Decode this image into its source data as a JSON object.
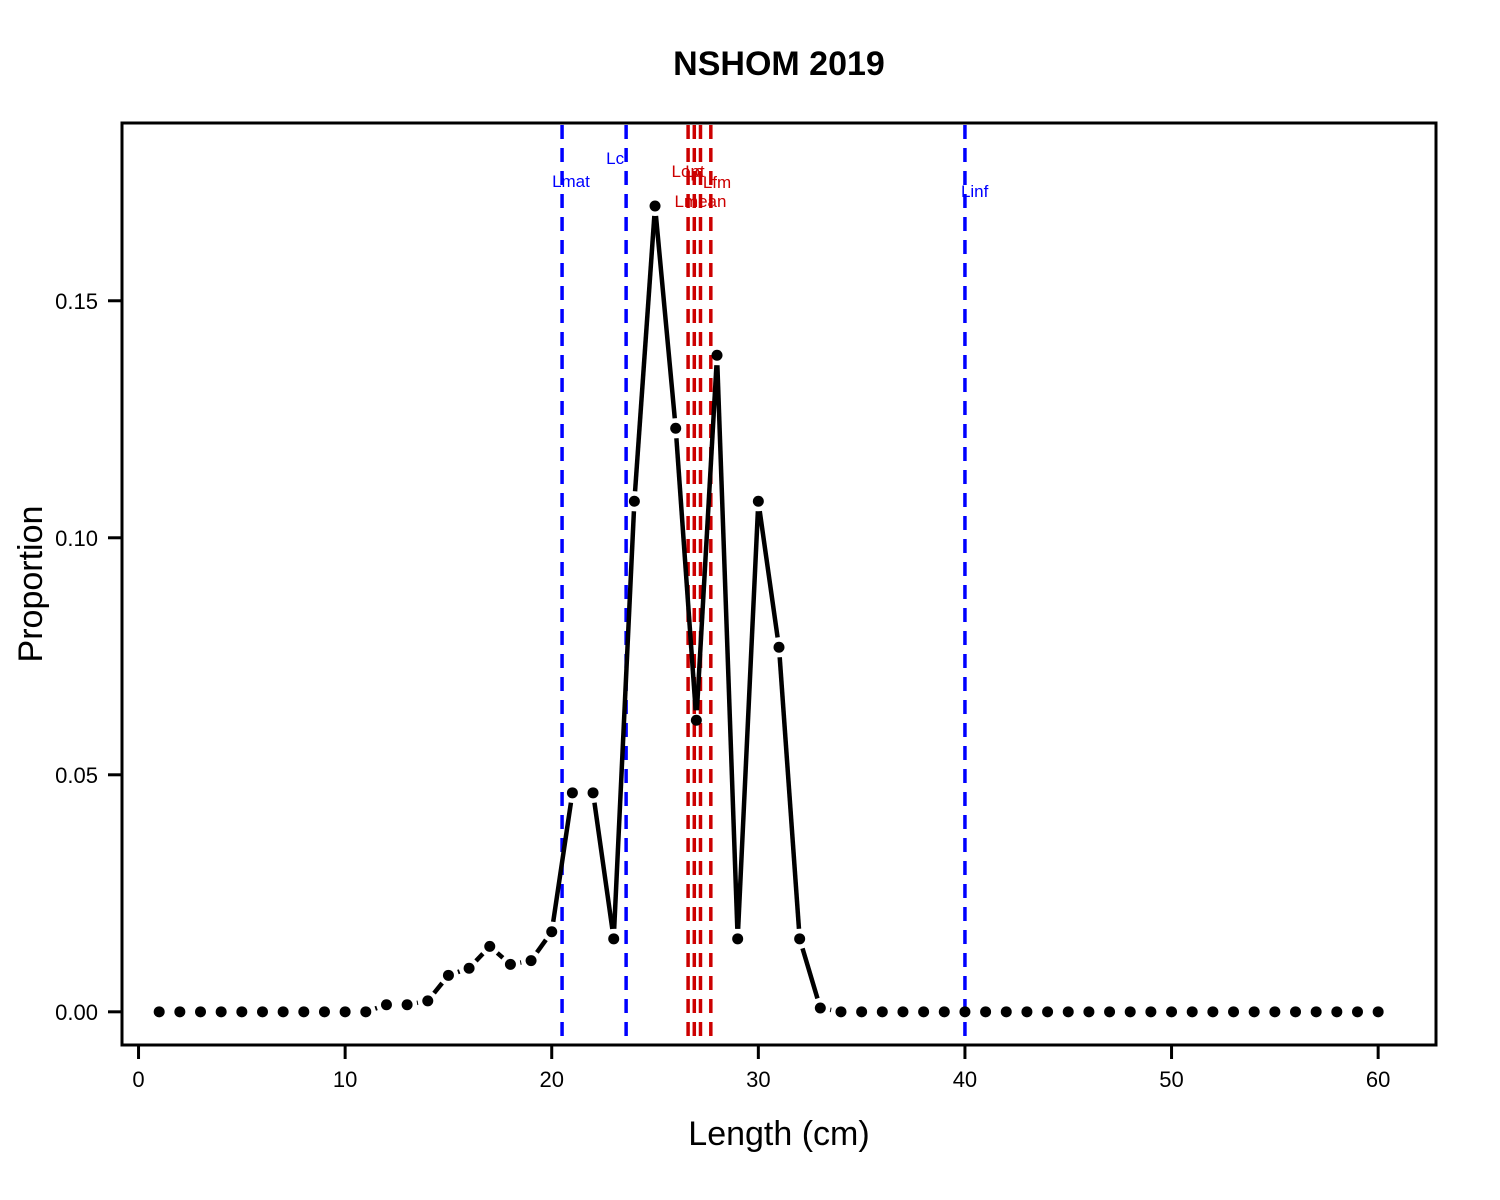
{
  "chart_data": {
    "type": "line",
    "title": "NSHOM 2019",
    "xlabel": "Length (cm)",
    "ylabel": "Proportion",
    "xlim": [
      -0.8,
      62.8
    ],
    "ylim": [
      -0.007,
      0.1875
    ],
    "x_ticks": [
      0,
      10,
      20,
      30,
      40,
      50,
      60
    ],
    "x_tick_labels": [
      "0",
      "10",
      "20",
      "30",
      "40",
      "50",
      "60"
    ],
    "y_ticks": [
      0,
      0.05,
      0.1,
      0.15
    ],
    "y_tick_labels": [
      "0.00",
      "0.05",
      "0.10",
      "0.15"
    ],
    "grid": false,
    "series": [
      {
        "x": [
          1,
          2,
          3,
          4,
          5,
          6,
          7,
          8,
          9,
          10,
          11,
          12,
          13,
          14,
          15,
          16,
          17,
          18,
          19,
          20,
          21,
          22,
          23,
          24,
          25,
          26,
          27,
          28,
          29,
          30,
          31,
          32,
          33,
          34,
          35,
          36,
          37,
          38,
          39,
          40,
          41,
          42,
          43,
          44,
          45,
          46,
          47,
          48,
          49,
          50,
          51,
          52,
          53,
          54,
          55,
          56,
          57,
          58,
          59,
          60
        ],
        "values": [
          0,
          0,
          0,
          0,
          0,
          0,
          0,
          0,
          0,
          0,
          0,
          0.0015,
          0.0015,
          0.0023,
          0.0077,
          0.0092,
          0.0138,
          0.01,
          0.0108,
          0.0169,
          0.0462,
          0.0462,
          0.0154,
          0.1077,
          0.17,
          0.1231,
          0.0615,
          0.1385,
          0.0154,
          0.1077,
          0.0769,
          0.0154,
          0.0008,
          0,
          0,
          0,
          0,
          0,
          0,
          0,
          0,
          0,
          0,
          0,
          0,
          0,
          0,
          0,
          0,
          0,
          0,
          0,
          0,
          0,
          0,
          0,
          0,
          0,
          0,
          0
        ],
        "color": "#000000"
      }
    ],
    "reference_lines": [
      {
        "label": "Lmat",
        "x": 20.5,
        "color": "#0000ff"
      },
      {
        "label": "Lc",
        "x": 23.6,
        "color": "#0000ff"
      },
      {
        "label": "Lopt",
        "x": 26.6,
        "color": "#cc0000"
      },
      {
        "label": "Lc",
        "x": 26.9,
        "color": "#cc0000"
      },
      {
        "label": "Lmean",
        "x": 27.2,
        "color": "#cc0000"
      },
      {
        "label": "Lfm",
        "x": 27.7,
        "color": "#cc0000"
      },
      {
        "label": "Linf",
        "x": 40.0,
        "color": "#0000ff"
      }
    ]
  }
}
